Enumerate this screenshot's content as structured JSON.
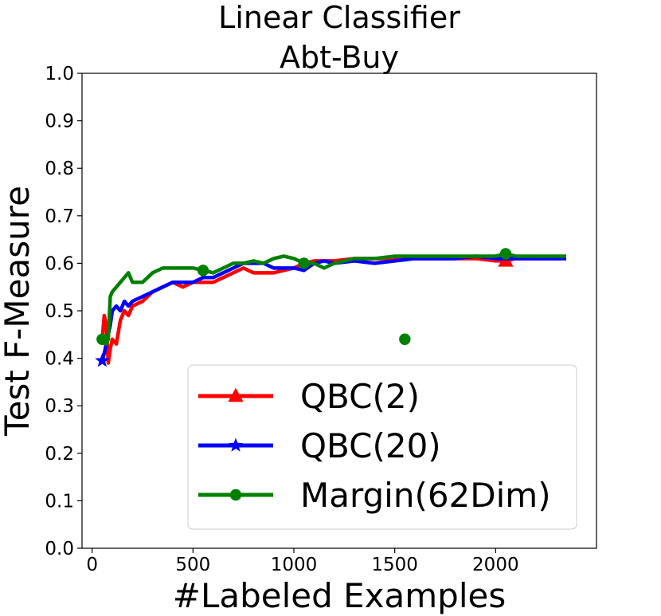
{
  "chart_data": {
    "type": "line",
    "title": "Linear Classifier",
    "subtitle": "Abt-Buy",
    "xlabel": "#Labeled Examples",
    "ylabel": "Test F-Measure",
    "xlim": [
      -50,
      2500
    ],
    "ylim": [
      0.0,
      1.0
    ],
    "x_ticks": [
      0,
      500,
      1000,
      1500,
      2000
    ],
    "x_tick_labels": [
      "0",
      "500",
      "1000",
      "1500",
      "2000"
    ],
    "y_ticks": [
      0.0,
      0.1,
      0.2,
      0.3,
      0.4,
      0.5,
      0.6,
      0.7,
      0.8,
      0.9,
      1.0
    ],
    "y_tick_labels": [
      "0.0",
      "0.1",
      "0.2",
      "0.3",
      "0.4",
      "0.5",
      "0.6",
      "0.7",
      "0.8",
      "0.9",
      "1.0"
    ],
    "grid": false,
    "legend_position": "lower-right",
    "series": [
      {
        "name": "QBC(2)",
        "color": "#ff0000",
        "marker": "triangle",
        "marker_x": [
          2050
        ],
        "x": [
          50,
          60,
          70,
          80,
          90,
          100,
          120,
          140,
          160,
          180,
          200,
          250,
          300,
          350,
          400,
          450,
          500,
          550,
          600,
          650,
          700,
          750,
          800,
          850,
          900,
          950,
          1000,
          1050,
          1100,
          1150,
          1200,
          1300,
          1400,
          1500,
          1600,
          1700,
          1800,
          1900,
          2000,
          2050,
          2100,
          2200,
          2300,
          2350
        ],
        "values": [
          0.44,
          0.49,
          0.47,
          0.39,
          0.42,
          0.44,
          0.43,
          0.48,
          0.5,
          0.49,
          0.51,
          0.52,
          0.54,
          0.55,
          0.56,
          0.55,
          0.56,
          0.56,
          0.56,
          0.57,
          0.58,
          0.59,
          0.58,
          0.58,
          0.58,
          0.585,
          0.59,
          0.6,
          0.605,
          0.605,
          0.605,
          0.61,
          0.61,
          0.61,
          0.61,
          0.61,
          0.61,
          0.61,
          0.605,
          0.605,
          0.61,
          0.61,
          0.61,
          0.61
        ]
      },
      {
        "name": "QBC(20)",
        "color": "#0000ff",
        "marker": "star",
        "marker_x": [
          50
        ],
        "x": [
          50,
          60,
          70,
          80,
          90,
          100,
          120,
          140,
          160,
          180,
          200,
          250,
          300,
          350,
          400,
          450,
          500,
          550,
          600,
          650,
          700,
          750,
          800,
          850,
          900,
          950,
          1000,
          1050,
          1100,
          1150,
          1200,
          1300,
          1400,
          1500,
          1600,
          1700,
          1800,
          1900,
          2000,
          2050,
          2100,
          2200,
          2300,
          2350
        ],
        "values": [
          0.395,
          0.41,
          0.43,
          0.45,
          0.47,
          0.5,
          0.51,
          0.5,
          0.52,
          0.51,
          0.52,
          0.53,
          0.54,
          0.55,
          0.56,
          0.56,
          0.56,
          0.57,
          0.57,
          0.58,
          0.59,
          0.6,
          0.6,
          0.6,
          0.59,
          0.59,
          0.59,
          0.585,
          0.6,
          0.605,
          0.6,
          0.605,
          0.6,
          0.605,
          0.61,
          0.61,
          0.61,
          0.615,
          0.61,
          0.61,
          0.61,
          0.61,
          0.61,
          0.61
        ]
      },
      {
        "name": "Margin(62Dim)",
        "color": "#008000",
        "marker": "circle",
        "marker_x": [
          50,
          550,
          1050,
          1550,
          2050
        ],
        "x": [
          50,
          60,
          70,
          80,
          90,
          100,
          120,
          140,
          160,
          180,
          200,
          250,
          300,
          350,
          400,
          450,
          500,
          550,
          600,
          650,
          700,
          750,
          800,
          850,
          900,
          950,
          1000,
          1050,
          1100,
          1150,
          1200,
          1300,
          1400,
          1500,
          1600,
          1700,
          1800,
          1900,
          2000,
          2050,
          2100,
          2200,
          2300,
          2350
        ],
        "values": [
          0.44,
          0.44,
          0.43,
          0.44,
          0.53,
          0.54,
          0.55,
          0.56,
          0.57,
          0.58,
          0.56,
          0.56,
          0.58,
          0.59,
          0.59,
          0.59,
          0.59,
          0.585,
          0.58,
          0.59,
          0.6,
          0.6,
          0.605,
          0.6,
          0.61,
          0.615,
          0.61,
          0.6,
          0.6,
          0.59,
          0.6,
          0.61,
          0.61,
          0.615,
          0.615,
          0.615,
          0.615,
          0.615,
          0.615,
          0.62,
          0.615,
          0.615,
          0.615,
          0.615
        ]
      }
    ]
  }
}
